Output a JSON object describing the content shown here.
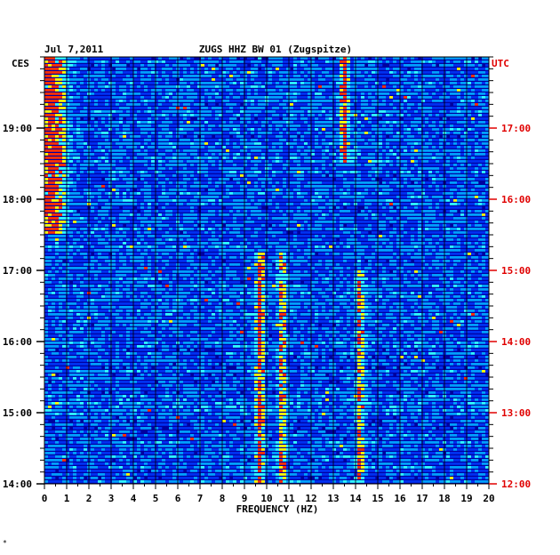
{
  "chart_data": {
    "type": "heatmap",
    "date": "Jul 7,2011",
    "station": "ZUGS HHZ BW 01 (Zugspitze)",
    "xlabel": "FREQUENCY (HZ)",
    "xlim": [
      0,
      20
    ],
    "x_ticks": [
      "0",
      "1",
      "2",
      "3",
      "4",
      "5",
      "6",
      "7",
      "8",
      "9",
      "10",
      "11",
      "12",
      "13",
      "14",
      "15",
      "16",
      "17",
      "18",
      "19",
      "20"
    ],
    "left_timezone": "CES",
    "right_timezone": "UTC",
    "left_time_ticks": [
      "14:00",
      "15:00",
      "16:00",
      "17:00",
      "18:00",
      "19:00"
    ],
    "right_time_ticks": [
      "12:00",
      "13:00",
      "14:00",
      "15:00",
      "16:00",
      "17:00"
    ],
    "time_range_ces": [
      "14:00",
      "20:00"
    ],
    "colormap": [
      "#0000a0",
      "#0030f0",
      "#00a0ff",
      "#30ffff",
      "#ffff00",
      "#ff3000"
    ],
    "features": [
      {
        "freq_hz": 0.3,
        "from": "17:30",
        "to": "20:00",
        "level": "strong"
      },
      {
        "freq_hz": 9.7,
        "from": "14:00",
        "to": "17:15",
        "level": "strong"
      },
      {
        "freq_hz": 10.7,
        "from": "14:00",
        "to": "17:15",
        "level": "moderate"
      },
      {
        "freq_hz": 13.5,
        "from": "18:30",
        "to": "20:00",
        "level": "strong"
      },
      {
        "freq_hz": 14.2,
        "from": "14:00",
        "to": "17:00",
        "level": "moderate"
      }
    ],
    "footnote": "*"
  }
}
